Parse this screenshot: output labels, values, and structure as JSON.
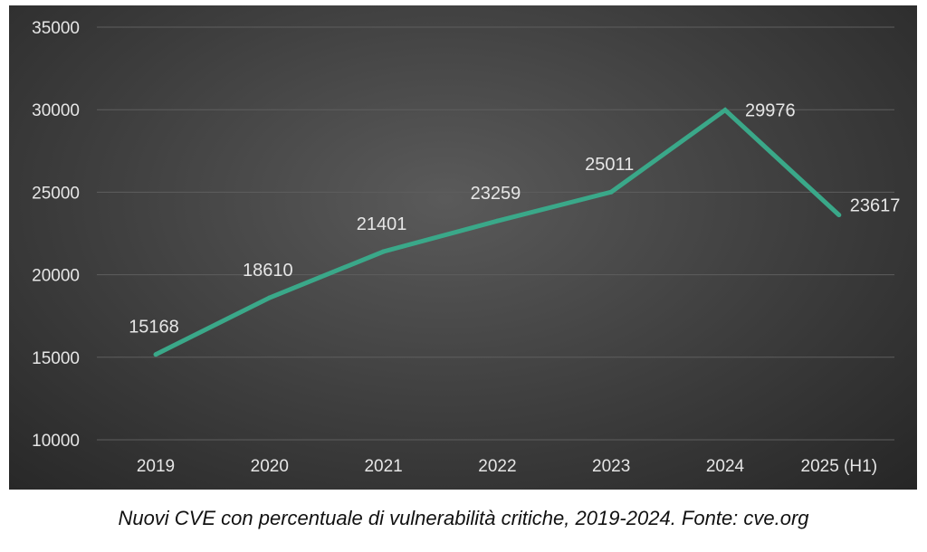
{
  "chart_data": {
    "type": "line",
    "categories": [
      "2019",
      "2020",
      "2021",
      "2022",
      "2023",
      "2024",
      "2025 (H1)"
    ],
    "series": [
      {
        "values": [
          15168,
          18610,
          21401,
          23259,
          25011,
          29976,
          23617
        ],
        "color": "#3aa889"
      }
    ],
    "y_ticks": [
      "35000",
      "30000",
      "25000",
      "20000",
      "15000",
      "10000"
    ],
    "ylim": [
      10000,
      35000
    ],
    "grid": true,
    "legend": "none",
    "data_labels": true
  },
  "caption": "Nuovi CVE con percentuale di vulnerabilità critiche, 2019-2024. Fonte: cve.org",
  "colors": {
    "background": "#3d3d3d",
    "line": "#3aa889",
    "text": "#e6e6e6",
    "grid": "#5e5e5e"
  }
}
